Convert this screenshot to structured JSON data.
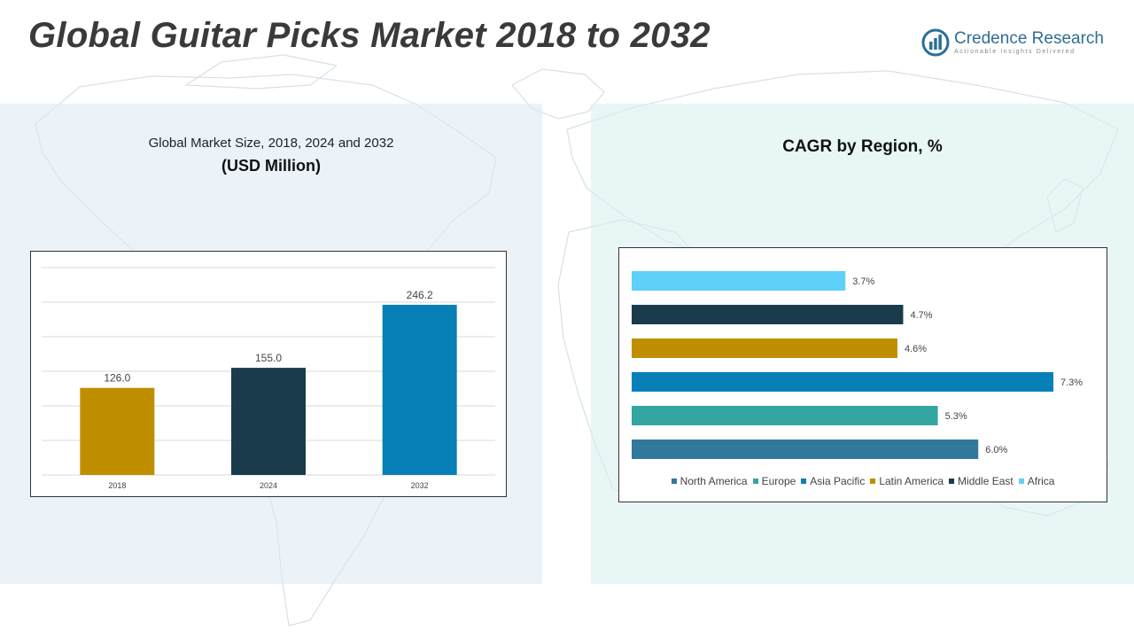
{
  "header": {
    "title": "Global Guitar Picks Market 2018 to 2032",
    "logo_name": "Credence Research",
    "logo_tagline": "Actionable Insights Delivered"
  },
  "left_panel": {
    "title": "Global Market Size, 2018, 2024 and 2032",
    "subtitle": "(USD Million)"
  },
  "right_panel": {
    "title": "CAGR by Region, %"
  },
  "chart_data": [
    {
      "type": "bar",
      "title": "Global Market Size, 2018, 2024 and 2032",
      "ylabel": "",
      "xlabel": "",
      "categories": [
        "2018",
        "2024",
        "2032"
      ],
      "values": [
        126.0,
        155.0,
        246.2
      ],
      "labels": [
        "126.0",
        "155.0",
        "246.2"
      ],
      "colors": [
        "#bf8f00",
        "#193b4b",
        "#0780b8"
      ],
      "ylim": [
        0,
        300
      ],
      "grid": true
    },
    {
      "type": "bar",
      "orientation": "horizontal",
      "title": "CAGR by Region, %",
      "categories": [
        "North America",
        "Europe",
        "Asia Pacific",
        "Latin America",
        "Middle East",
        "Africa"
      ],
      "values": [
        6.0,
        5.3,
        7.3,
        4.6,
        4.7,
        3.7
      ],
      "labels": [
        "6.0%",
        "5.3%",
        "7.3%",
        "4.6%",
        "4.7%",
        "3.7%"
      ],
      "colors": [
        "#31799b",
        "#34a6a2",
        "#0780b8",
        "#bf8f00",
        "#193b4b",
        "#5fd0f7"
      ],
      "xlim": [
        0,
        7.3
      ],
      "legend": "bottom"
    }
  ]
}
